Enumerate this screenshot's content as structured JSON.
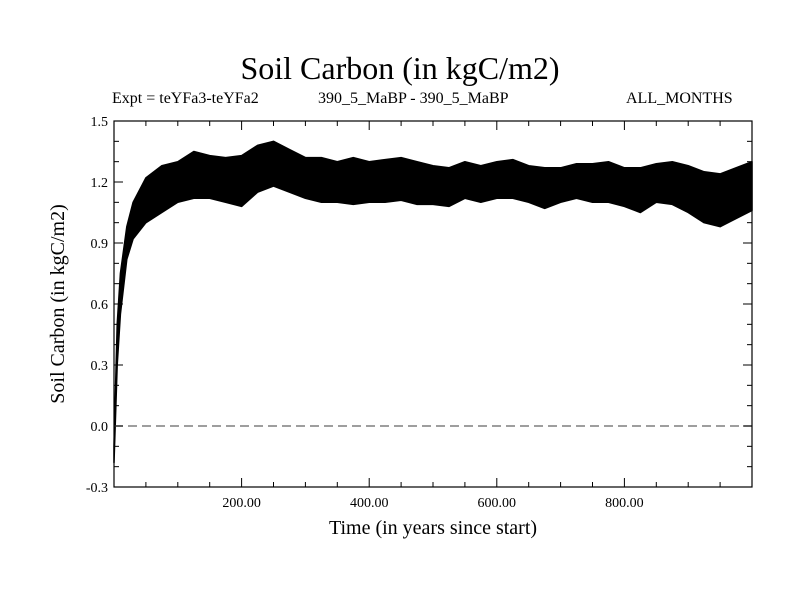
{
  "chart_data": {
    "type": "line",
    "title": "Soil Carbon (in kgC/m2)",
    "subtitle_left": "Expt = teYFa3-teYFa2",
    "subtitle_center": "390_5_MaBP - 390_5_MaBP",
    "subtitle_right": "ALL_MONTHS",
    "xlabel": "Time (in years since start)",
    "ylabel": "Soil Carbon (in kgC/m2)",
    "xlim": [
      0,
      1000
    ],
    "ylim": [
      -0.3,
      1.5
    ],
    "xticks": [
      200,
      400,
      600,
      800
    ],
    "xtick_labels": [
      "200.00",
      "400.00",
      "600.00",
      "800.00"
    ],
    "yticks": [
      -0.3,
      0.0,
      0.3,
      0.6,
      0.9,
      1.2,
      1.5
    ],
    "ytick_labels": [
      "-0.3",
      "0.0",
      "0.3",
      "0.6",
      "0.9",
      "1.2",
      "1.5"
    ],
    "reference_line": {
      "y": 0.0,
      "style": "dashed"
    },
    "series": [
      {
        "x": [
          0,
          5,
          10,
          20,
          30,
          50,
          75,
          100,
          125,
          150,
          175,
          200,
          225,
          250,
          275,
          300,
          325,
          350,
          375,
          400,
          425,
          450,
          475,
          500,
          525,
          550,
          575,
          600,
          625,
          650,
          675,
          700,
          725,
          750,
          775,
          800,
          825,
          850,
          875,
          900,
          925,
          950,
          975,
          1000
        ],
        "high": [
          -0.1,
          0.5,
          0.75,
          0.98,
          1.1,
          1.22,
          1.28,
          1.3,
          1.35,
          1.33,
          1.32,
          1.33,
          1.38,
          1.4,
          1.36,
          1.32,
          1.32,
          1.3,
          1.32,
          1.3,
          1.31,
          1.32,
          1.3,
          1.28,
          1.27,
          1.3,
          1.28,
          1.3,
          1.31,
          1.28,
          1.27,
          1.27,
          1.29,
          1.29,
          1.3,
          1.27,
          1.27,
          1.29,
          1.3,
          1.28,
          1.25,
          1.24,
          1.27,
          1.3
        ],
        "low": [
          -0.18,
          0.3,
          0.55,
          0.82,
          0.92,
          1.0,
          1.05,
          1.1,
          1.12,
          1.12,
          1.1,
          1.08,
          1.15,
          1.18,
          1.15,
          1.12,
          1.1,
          1.1,
          1.09,
          1.1,
          1.1,
          1.11,
          1.09,
          1.09,
          1.08,
          1.12,
          1.1,
          1.12,
          1.12,
          1.1,
          1.07,
          1.1,
          1.12,
          1.1,
          1.1,
          1.08,
          1.05,
          1.1,
          1.09,
          1.05,
          1.0,
          0.98,
          1.02,
          1.06
        ]
      }
    ],
    "colors": {
      "series": "#000000",
      "reference": "#7f7f7f"
    }
  }
}
